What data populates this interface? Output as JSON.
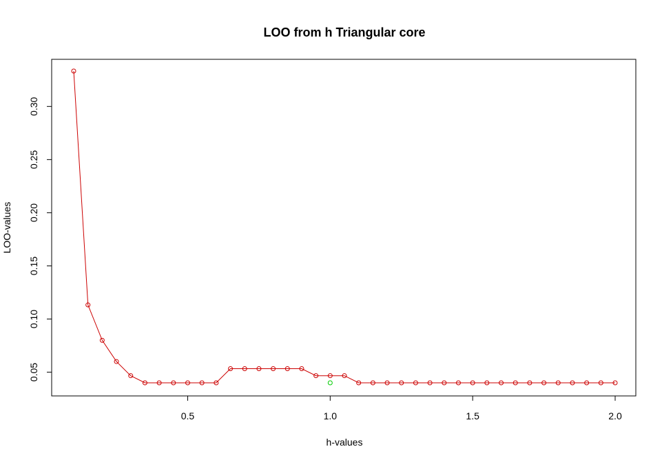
{
  "chart_data": {
    "type": "line",
    "title": "LOO from h Triangular core",
    "xlabel": "h-values",
    "ylabel": "LOO-values",
    "xlim": [
      0.1,
      2.0
    ],
    "ylim": [
      0.04,
      0.3333
    ],
    "x_ticks": [
      "0.5",
      "1.0",
      "1.5",
      "2.0"
    ],
    "y_ticks": [
      "0.05",
      "0.10",
      "0.15",
      "0.20",
      "0.25",
      "0.30"
    ],
    "grid": false,
    "series": [
      {
        "color": "#cc0000",
        "marker": "open-circle",
        "x": [
          0.1,
          0.15,
          0.2,
          0.25,
          0.3,
          0.35,
          0.4,
          0.45,
          0.5,
          0.55,
          0.6,
          0.65,
          0.7,
          0.75,
          0.8,
          0.85,
          0.9,
          0.95,
          1.0,
          1.05,
          1.1,
          1.15,
          1.2,
          1.25,
          1.3,
          1.35,
          1.4,
          1.45,
          1.5,
          1.55,
          1.6,
          1.65,
          1.7,
          1.75,
          1.8,
          1.85,
          1.9,
          1.95,
          2.0
        ],
        "y": [
          0.3333,
          0.1133,
          0.08,
          0.06,
          0.0467,
          0.04,
          0.04,
          0.04,
          0.04,
          0.04,
          0.04,
          0.0533,
          0.0533,
          0.0533,
          0.0533,
          0.0533,
          0.0533,
          0.0467,
          0.0467,
          0.0467,
          0.04,
          0.04,
          0.04,
          0.04,
          0.04,
          0.04,
          0.04,
          0.04,
          0.04,
          0.04,
          0.04,
          0.04,
          0.04,
          0.04,
          0.04,
          0.04,
          0.04,
          0.04,
          0.04
        ]
      },
      {
        "color": "#00cc00",
        "marker": "open-circle",
        "x": [
          1.0
        ],
        "y": [
          0.04
        ]
      }
    ]
  }
}
